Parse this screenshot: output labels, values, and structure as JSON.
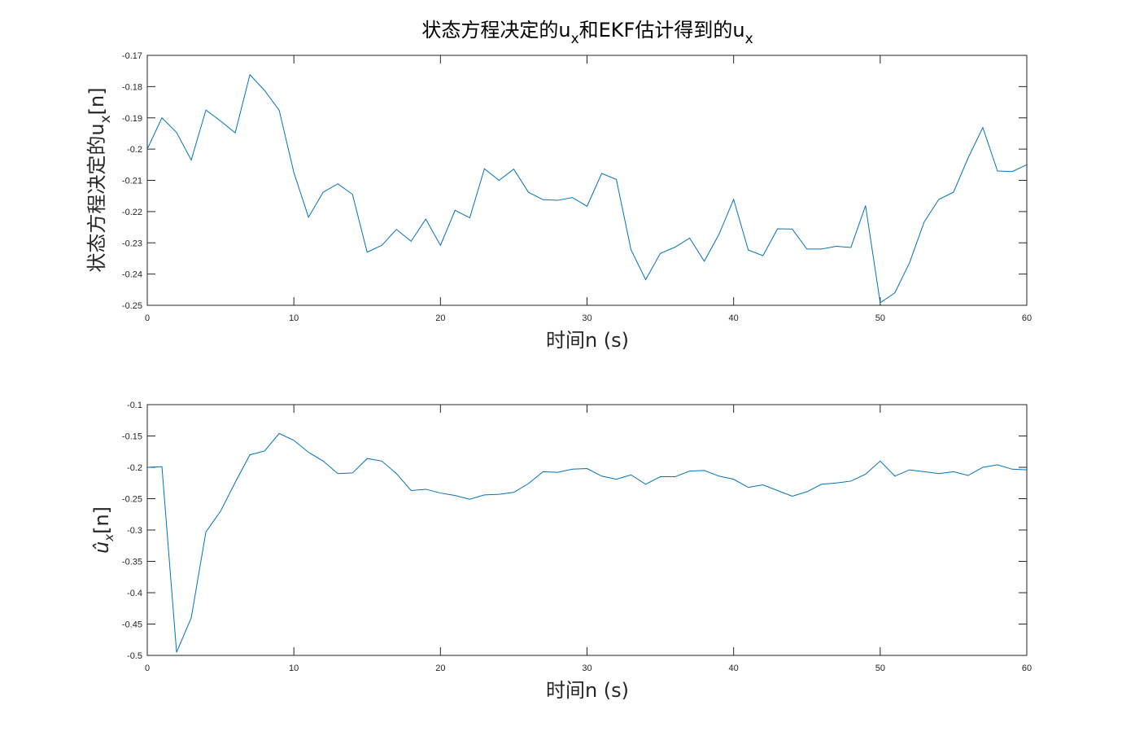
{
  "figure": {
    "title_main": "状态方程决定的u",
    "title_sub1": "x",
    "title_mid": "和EKF估计得到的u",
    "title_sub2": "x"
  },
  "colors": {
    "line": "#0072BD",
    "axis": "#262626"
  },
  "chart_data": [
    {
      "type": "line",
      "xlabel": "时间n (s)",
      "ylabel_main": "状态方程决定的u",
      "ylabel_sub": "x",
      "ylabel_tail": "[n]",
      "xlim": [
        0,
        60
      ],
      "ylim": [
        -0.25,
        -0.17
      ],
      "xticks": [
        0,
        10,
        20,
        30,
        40,
        50,
        60
      ],
      "yticks": [
        -0.25,
        -0.24,
        -0.23,
        -0.22,
        -0.21,
        -0.2,
        -0.19,
        -0.18,
        -0.17
      ],
      "ytick_labels": [
        "-0.25",
        "-0.24",
        "-0.23",
        "-0.22",
        "-0.21",
        "-0.2",
        "-0.19",
        "-0.18",
        "-0.17"
      ],
      "grid": false,
      "series": [
        {
          "x": [
            0,
            1,
            2,
            3,
            4,
            5,
            6,
            7,
            8,
            9,
            10,
            11,
            12,
            13,
            14,
            15,
            16,
            17,
            18,
            19,
            20,
            21,
            22,
            23,
            24,
            25,
            26,
            27,
            28,
            29,
            30,
            31,
            32,
            33,
            34,
            35,
            36,
            37,
            38,
            39,
            40,
            41,
            42,
            43,
            44,
            45,
            46,
            47,
            48,
            49,
            50,
            51,
            52,
            53,
            54,
            55,
            56,
            57,
            58,
            59,
            60
          ],
          "values": [
            -0.2,
            -0.19,
            -0.1947,
            -0.2035,
            -0.1875,
            -0.191,
            -0.1948,
            -0.1762,
            -0.1812,
            -0.1876,
            -0.2075,
            -0.2218,
            -0.2138,
            -0.2111,
            -0.2145,
            -0.233,
            -0.2308,
            -0.2257,
            -0.2295,
            -0.2224,
            -0.2308,
            -0.2196,
            -0.222,
            -0.2063,
            -0.21,
            -0.2064,
            -0.2138,
            -0.2162,
            -0.2164,
            -0.2155,
            -0.2183,
            -0.2078,
            -0.2097,
            -0.2322,
            -0.2418,
            -0.2334,
            -0.2314,
            -0.2285,
            -0.2359,
            -0.2273,
            -0.2161,
            -0.2323,
            -0.2341,
            -0.2255,
            -0.2256,
            -0.232,
            -0.232,
            -0.2311,
            -0.2315,
            -0.2181,
            -0.2492,
            -0.246,
            -0.2364,
            -0.2233,
            -0.2161,
            -0.2138,
            -0.2028,
            -0.1931,
            -0.207,
            -0.2072,
            -0.205
          ]
        }
      ]
    },
    {
      "type": "line",
      "xlabel": "时间n (s)",
      "ylabel_math": "û",
      "ylabel_sub": "x",
      "ylabel_tail": "[n]",
      "xlim": [
        0,
        60
      ],
      "ylim": [
        -0.5,
        -0.1
      ],
      "xticks": [
        0,
        10,
        20,
        30,
        40,
        50,
        60
      ],
      "yticks": [
        -0.5,
        -0.45,
        -0.4,
        -0.35,
        -0.3,
        -0.25,
        -0.2,
        -0.15,
        -0.1
      ],
      "ytick_labels": [
        "-0.5",
        "-0.45",
        "-0.4",
        "-0.35",
        "-0.3",
        "-0.25",
        "-0.2",
        "-0.15",
        "-0.1"
      ],
      "grid": false,
      "series": [
        {
          "x": [
            0,
            1,
            2,
            3,
            4,
            5,
            6,
            7,
            8,
            9,
            10,
            11,
            12,
            13,
            14,
            15,
            16,
            17,
            18,
            19,
            20,
            21,
            22,
            23,
            24,
            25,
            26,
            27,
            28,
            29,
            30,
            31,
            32,
            33,
            34,
            35,
            36,
            37,
            38,
            39,
            40,
            41,
            42,
            43,
            44,
            45,
            46,
            47,
            48,
            49,
            50,
            51,
            52,
            53,
            54,
            55,
            56,
            57,
            58,
            59,
            60
          ],
          "values": [
            -0.2,
            -0.199,
            -0.495,
            -0.44,
            -0.303,
            -0.27,
            -0.224,
            -0.18,
            -0.174,
            -0.146,
            -0.157,
            -0.176,
            -0.19,
            -0.21,
            -0.209,
            -0.186,
            -0.19,
            -0.21,
            -0.237,
            -0.235,
            -0.241,
            -0.245,
            -0.251,
            -0.244,
            -0.243,
            -0.24,
            -0.226,
            -0.207,
            -0.208,
            -0.203,
            -0.202,
            -0.214,
            -0.219,
            -0.212,
            -0.227,
            -0.215,
            -0.215,
            -0.206,
            -0.205,
            -0.214,
            -0.219,
            -0.232,
            -0.228,
            -0.237,
            -0.246,
            -0.239,
            -0.227,
            -0.225,
            -0.222,
            -0.211,
            -0.19,
            -0.214,
            -0.204,
            -0.207,
            -0.21,
            -0.207,
            -0.213,
            -0.2,
            -0.196,
            -0.203,
            -0.204
          ]
        }
      ]
    }
  ]
}
